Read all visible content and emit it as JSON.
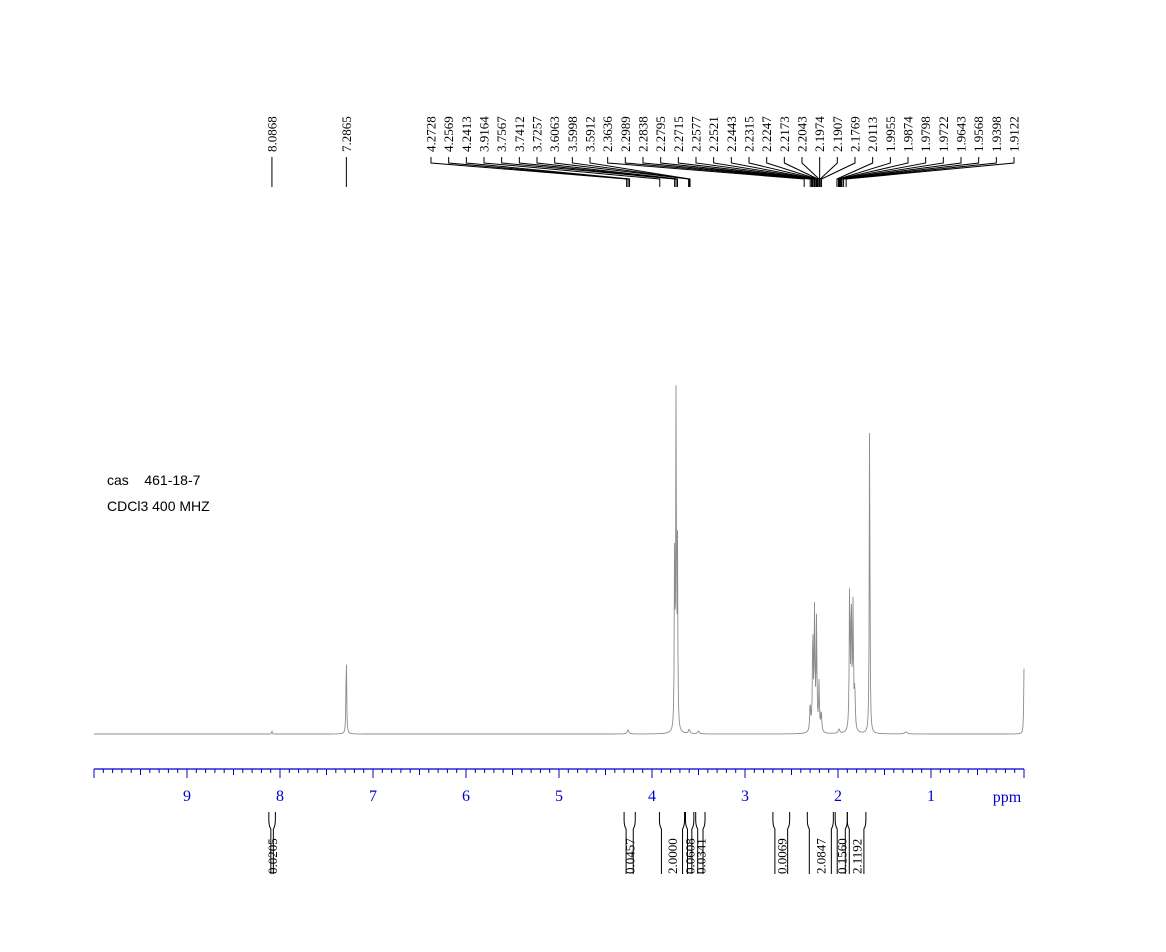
{
  "annotation": {
    "line1": "cas    461-18-7",
    "line2": "CDCl3 400 MHZ"
  },
  "colors": {
    "axis": "#0000cc",
    "spectrum": "#8c8c8c",
    "labels": "#000000"
  },
  "chart_data": {
    "type": "line",
    "title": "",
    "xlabel": "ppm",
    "ylabel": "",
    "x_reversed": true,
    "xlim": [
      10.0,
      0.0
    ],
    "x_ticks": [
      "9",
      "8",
      "7",
      "6",
      "5",
      "4",
      "3",
      "2",
      "1"
    ],
    "grid": false,
    "peak_labels": [
      "8.0868",
      "7.2865",
      "4.2728",
      "4.2569",
      "4.2413",
      "3.9164",
      "3.7567",
      "3.7412",
      "3.7257",
      "3.6063",
      "3.5998",
      "3.5912",
      "2.3636",
      "2.2989",
      "2.2838",
      "2.2795",
      "2.2715",
      "2.2577",
      "2.2521",
      "2.2443",
      "2.2315",
      "2.2247",
      "2.2173",
      "2.2043",
      "2.1974",
      "2.1907",
      "2.1769",
      "2.0113",
      "1.9955",
      "1.9874",
      "1.9798",
      "1.9722",
      "1.9643",
      "1.9568",
      "1.9398",
      "1.9122"
    ],
    "integrals": [
      {
        "from": 8.12,
        "to": 8.05,
        "value": "0.0205"
      },
      {
        "from": 4.3,
        "to": 4.18,
        "value": "0.0457"
      },
      {
        "from": 3.92,
        "to": 3.65,
        "value": "2.0000"
      },
      {
        "from": 3.64,
        "to": 3.55,
        "value": "0.0608"
      },
      {
        "from": 3.53,
        "to": 3.43,
        "value": "0.0341"
      },
      {
        "from": 2.7,
        "to": 2.52,
        "value": "0.0069"
      },
      {
        "from": 2.33,
        "to": 2.05,
        "value": "2.0847"
      },
      {
        "from": 2.03,
        "to": 1.9,
        "value": "0.1560"
      },
      {
        "from": 1.9,
        "to": 1.7,
        "value": "2.1192"
      }
    ],
    "spectrum_peaks": [
      {
        "x": 8.087,
        "h": 0.008,
        "w": 0.004
      },
      {
        "x": 7.287,
        "h": 0.255,
        "w": 0.004
      },
      {
        "x": 4.257,
        "h": 0.012,
        "w": 0.01
      },
      {
        "x": 3.757,
        "h": 0.53,
        "w": 0.004
      },
      {
        "x": 3.741,
        "h": 1.0,
        "w": 0.004
      },
      {
        "x": 3.726,
        "h": 0.52,
        "w": 0.004
      },
      {
        "x": 3.6,
        "h": 0.012,
        "w": 0.01
      },
      {
        "x": 3.5,
        "h": 0.008,
        "w": 0.01
      },
      {
        "x": 2.299,
        "h": 0.08,
        "w": 0.006
      },
      {
        "x": 2.271,
        "h": 0.3,
        "w": 0.005
      },
      {
        "x": 2.252,
        "h": 0.35,
        "w": 0.005
      },
      {
        "x": 2.231,
        "h": 0.32,
        "w": 0.005
      },
      {
        "x": 2.204,
        "h": 0.14,
        "w": 0.005
      },
      {
        "x": 2.18,
        "h": 0.06,
        "w": 0.006
      },
      {
        "x": 1.99,
        "h": 0.012,
        "w": 0.01
      },
      {
        "x": 1.875,
        "h": 0.42,
        "w": 0.005
      },
      {
        "x": 1.857,
        "h": 0.38,
        "w": 0.005
      },
      {
        "x": 1.838,
        "h": 0.36,
        "w": 0.005
      },
      {
        "x": 1.82,
        "h": 0.12,
        "w": 0.006
      },
      {
        "x": 1.66,
        "h": 0.965,
        "w": 0.004
      },
      {
        "x": 1.27,
        "h": 0.006,
        "w": 0.015
      },
      {
        "x": 0.0,
        "h": 0.19,
        "w": 0.004
      }
    ]
  }
}
